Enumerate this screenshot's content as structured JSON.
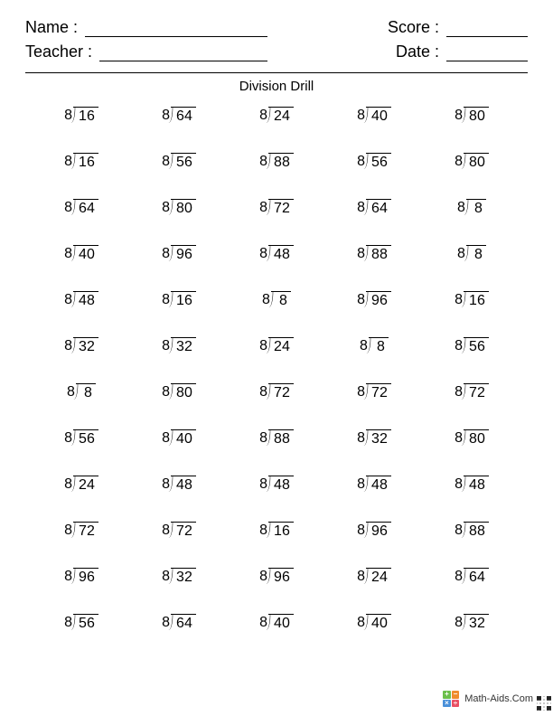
{
  "header": {
    "name_label": "Name :",
    "teacher_label": "Teacher :",
    "score_label": "Score :",
    "date_label": "Date :"
  },
  "title": "Division Drill",
  "problems": {
    "divisor": 8,
    "dividends": [
      [
        16,
        64,
        24,
        40,
        80
      ],
      [
        16,
        56,
        88,
        56,
        80
      ],
      [
        64,
        80,
        72,
        64,
        8
      ],
      [
        40,
        96,
        48,
        88,
        8
      ],
      [
        48,
        16,
        8,
        96,
        16
      ],
      [
        32,
        32,
        24,
        8,
        56
      ],
      [
        8,
        80,
        72,
        72,
        72
      ],
      [
        56,
        40,
        88,
        32,
        80
      ],
      [
        24,
        48,
        48,
        48,
        48
      ],
      [
        72,
        72,
        16,
        96,
        88
      ],
      [
        96,
        32,
        96,
        24,
        64
      ],
      [
        56,
        64,
        40,
        40,
        32
      ]
    ]
  },
  "footer": {
    "site": "Math-Aids.Com",
    "logo_colors": [
      "#6bbf4b",
      "#f08c2e",
      "#4a90d9",
      "#e94f64"
    ],
    "logo_glyphs": [
      "+",
      "−",
      "×",
      "÷"
    ]
  },
  "style": {
    "page_bg": "#ffffff",
    "text_color": "#000000",
    "font_family": "Arial",
    "title_fontsize": 15,
    "header_fontsize": 18,
    "problem_fontsize": 16,
    "grid_cols": 5,
    "grid_rows": 12
  }
}
